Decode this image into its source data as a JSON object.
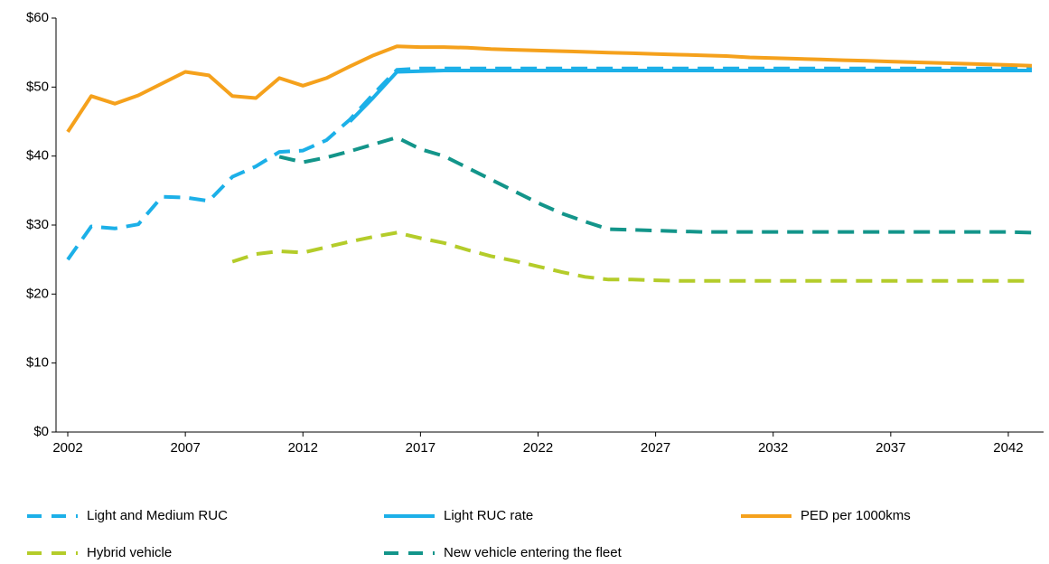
{
  "chart_data": {
    "type": "line",
    "x": [
      2002,
      2003,
      2004,
      2005,
      2006,
      2007,
      2008,
      2009,
      2010,
      2011,
      2012,
      2013,
      2014,
      2015,
      2016,
      2017,
      2018,
      2019,
      2020,
      2021,
      2022,
      2023,
      2024,
      2025,
      2026,
      2027,
      2028,
      2029,
      2030,
      2031,
      2032,
      2033,
      2034,
      2035,
      2036,
      2037,
      2038,
      2039,
      2040,
      2041,
      2042,
      2043
    ],
    "xlim": [
      2001.5,
      2043.5
    ],
    "xticks": [
      2002,
      2007,
      2012,
      2017,
      2022,
      2027,
      2032,
      2037,
      2042
    ],
    "ylim": [
      0,
      60
    ],
    "yticks": [
      {
        "value": 0,
        "label": "$0"
      },
      {
        "value": 10,
        "label": "$10"
      },
      {
        "value": 20,
        "label": "$20"
      },
      {
        "value": 30,
        "label": "$30"
      },
      {
        "value": 40,
        "label": "$40"
      },
      {
        "value": 50,
        "label": "$50"
      },
      {
        "value": 60,
        "label": "$60"
      }
    ],
    "grid": false,
    "legend": "bottom",
    "series": [
      {
        "name": "Light and Medium RUC",
        "color": "#1cb0e8",
        "dash": true,
        "values": [
          25,
          29.8,
          29.5,
          30.1,
          34.1,
          34,
          33.5,
          37,
          38.5,
          40.6,
          40.8,
          42.3,
          45.3,
          49,
          52.5,
          52.7,
          52.7,
          52.7,
          52.7,
          52.7,
          52.7,
          52.7,
          52.7,
          52.7,
          52.7,
          52.7,
          52.7,
          52.7,
          52.7,
          52.7,
          52.7,
          52.7,
          52.7,
          52.7,
          52.7,
          52.7,
          52.7,
          52.7,
          52.7,
          52.7,
          52.7,
          52.7
        ]
      },
      {
        "name": "Light RUC rate",
        "color": "#1cb0e8",
        "dash": false,
        "values": [
          null,
          null,
          null,
          null,
          null,
          null,
          null,
          null,
          null,
          null,
          null,
          null,
          45,
          48.5,
          52.2,
          52.3,
          52.4,
          52.4,
          52.4,
          52.4,
          52.4,
          52.4,
          52.4,
          52.4,
          52.4,
          52.4,
          52.4,
          52.4,
          52.4,
          52.4,
          52.4,
          52.4,
          52.4,
          52.4,
          52.4,
          52.4,
          52.4,
          52.4,
          52.4,
          52.4,
          52.4,
          52.4
        ]
      },
      {
        "name": "PED per 1000kms",
        "color": "#f5a11c",
        "dash": false,
        "values": [
          43.5,
          48.7,
          47.6,
          48.8,
          50.5,
          52.2,
          51.7,
          48.7,
          48.4,
          51.3,
          50.2,
          51.3,
          53,
          54.6,
          55.9,
          55.8,
          55.8,
          55.7,
          55.5,
          55.4,
          55.3,
          55.2,
          55.1,
          55,
          54.9,
          54.8,
          54.7,
          54.6,
          54.5,
          54.3,
          54.2,
          54.1,
          54,
          53.9,
          53.8,
          53.7,
          53.6,
          53.5,
          53.4,
          53.3,
          53.2,
          53.1
        ]
      },
      {
        "name": "Hybrid vehicle",
        "color": "#b4cc2a",
        "dash": true,
        "values": [
          null,
          null,
          null,
          null,
          null,
          null,
          null,
          24.7,
          25.8,
          26.2,
          26,
          26.8,
          27.6,
          28.3,
          28.9,
          28.1,
          27.4,
          26.4,
          25.5,
          24.8,
          24,
          23.2,
          22.5,
          22.1,
          22.1,
          22,
          21.9,
          21.9,
          21.9,
          21.9,
          21.9,
          21.9,
          21.9,
          21.9,
          21.9,
          21.9,
          21.9,
          21.9,
          21.9,
          21.9,
          21.9,
          21.9
        ]
      },
      {
        "name": "New vehicle entering the fleet",
        "color": "#13958a",
        "dash": true,
        "values": [
          null,
          null,
          null,
          null,
          null,
          null,
          null,
          null,
          null,
          39.9,
          39.1,
          39.8,
          40.7,
          41.7,
          42.7,
          41,
          40,
          38.3,
          36.6,
          34.9,
          33.2,
          31.7,
          30.5,
          29.4,
          29.3,
          29.2,
          29.1,
          29,
          29,
          29,
          29,
          29,
          29,
          29,
          29,
          29,
          29,
          29,
          29,
          29,
          29,
          28.9
        ]
      }
    ]
  }
}
